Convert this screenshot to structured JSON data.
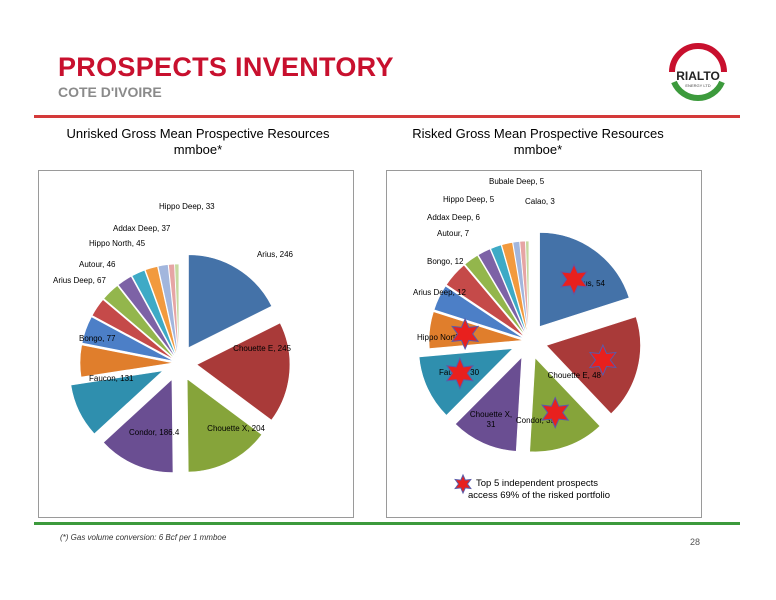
{
  "header": {
    "title": "PROSPECTS INVENTORY",
    "subtitle": "COTE D'IVOIRE"
  },
  "logo": {
    "name": "RIALTO",
    "tagline": "ENERGY LTD"
  },
  "footnote": "(*) Gas volume conversion: 6 Bcf per 1 mmboe",
  "page_number": "28",
  "star_legend": {
    "line1": "Top 5 independent prospects",
    "line2": "access 69% of the risked portfolio"
  },
  "colors": {
    "accent_red": "#c8102e",
    "line_green": "#3c9a3c"
  },
  "chart_data": [
    {
      "type": "pie",
      "title": "Unrisked Gross Mean Prospective Resources",
      "subtitle": "mmboe*",
      "categories": [
        "Arius",
        "Chouette E",
        "Chouette X",
        "Condor",
        "Faucon",
        "Bongo",
        "Arius Deep",
        "Autour",
        "Hippo North",
        "Addax Deep",
        "Hippo Deep",
        "Other 1",
        "Other 2",
        "Other 3",
        "Other 4"
      ],
      "labels": [
        "Arius, 246",
        "Chouette E, 245",
        "Chouette X, 204",
        "Condor, 186.4",
        "Faucon, 131",
        "Bongo, 77",
        "Arius Deep, 67",
        "Autour, 46",
        "Hippo North, 45",
        "Addax Deep, 37",
        "Hippo Deep, 33",
        "",
        "",
        "",
        ""
      ],
      "values": [
        246,
        245,
        204,
        186.4,
        131,
        77,
        67,
        46,
        45,
        37,
        33,
        30,
        24,
        14,
        10
      ],
      "colors": [
        "#4472a8",
        "#a93a39",
        "#86a43a",
        "#6a4e92",
        "#2f8fae",
        "#e07e2c",
        "#4c7fc7",
        "#c54a49",
        "#93b64c",
        "#7d62a6",
        "#3eaac6",
        "#f29a3e",
        "#a2b6dd",
        "#e6a5a4",
        "#c6d9a0"
      ]
    },
    {
      "type": "pie",
      "title": "Risked Gross Mean Prospective Resources",
      "subtitle": "mmboe*",
      "categories": [
        "Arius",
        "Chouette E",
        "Condor",
        "Chouette X",
        "Faucon",
        "Hippo North",
        "Arius Deep",
        "Bongo",
        "Autour",
        "Addax Deep",
        "Hippo Deep",
        "Bubale Deep",
        "Calao",
        "Other 1",
        "Other 2"
      ],
      "labels": [
        "Arius, 54",
        "Chouette E, 48",
        "Condor, 35",
        "Chouette X,\n31",
        "Faucon, 30",
        "Hippo North, 17",
        "Arius Deep, 12",
        "Bongo, 12",
        "Autour, 7",
        "Addax Deep, 6",
        "Hippo Deep, 5",
        "Bubale Deep, 5",
        "Calao, 3",
        "",
        ""
      ],
      "values": [
        54,
        48,
        35,
        31,
        30,
        17,
        12,
        12,
        7,
        6,
        5,
        5,
        3,
        2.5,
        1.5
      ],
      "colors": [
        "#4472a8",
        "#a93a39",
        "#86a43a",
        "#6a4e92",
        "#2f8fae",
        "#e07e2c",
        "#4c7fc7",
        "#c54a49",
        "#93b64c",
        "#7d62a6",
        "#3eaac6",
        "#f29a3e",
        "#a2b6dd",
        "#e6a5a4",
        "#c6d9a0"
      ],
      "starred": [
        "Arius",
        "Chouette E",
        "Condor",
        "Faucon",
        "Hippo North"
      ]
    }
  ]
}
